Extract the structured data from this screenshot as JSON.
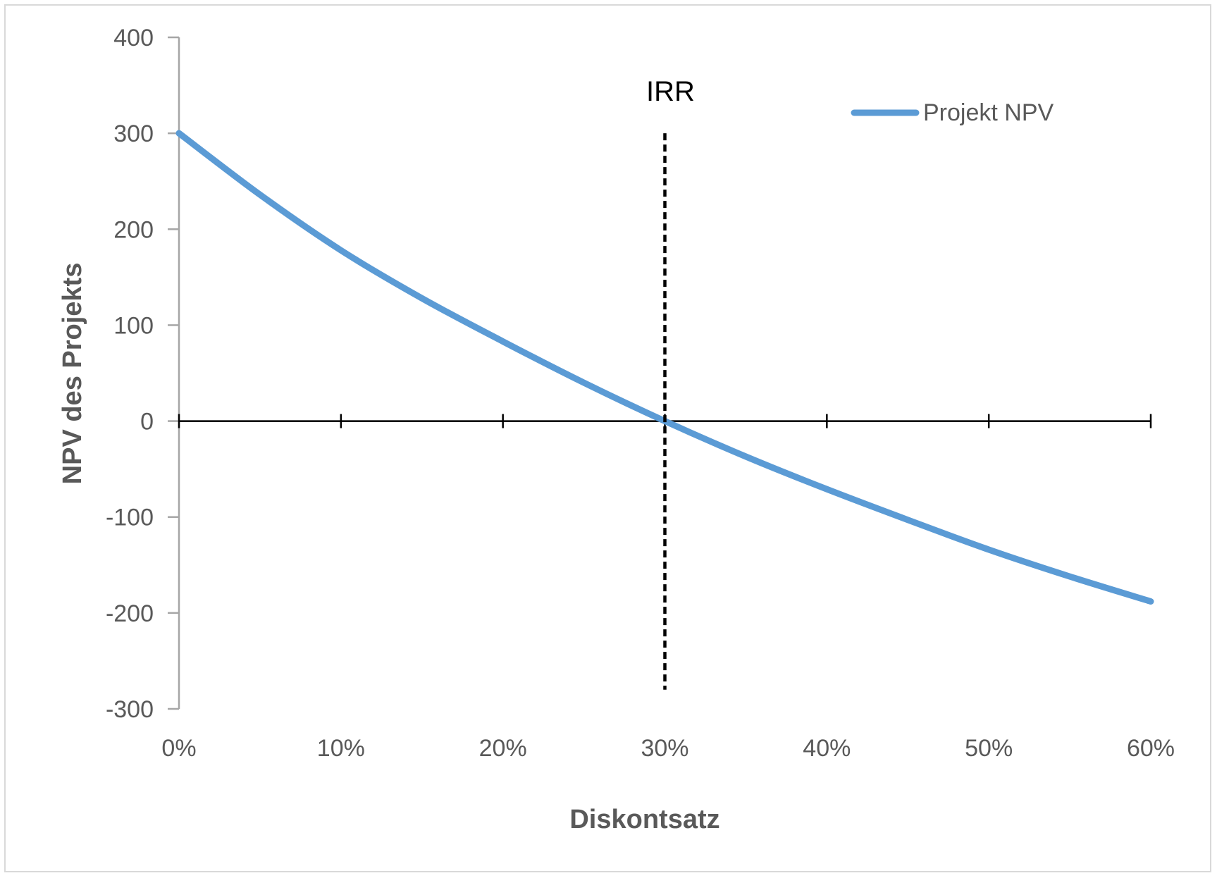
{
  "chart_data": {
    "type": "line",
    "title": "",
    "xlabel": "Diskontsatz",
    "ylabel": "NPV des Projekts",
    "xlim": [
      0,
      0.6
    ],
    "ylim": [
      -300,
      400
    ],
    "x_ticks": [
      0,
      0.1,
      0.2,
      0.3,
      0.4,
      0.5,
      0.6
    ],
    "x_tick_labels": [
      "0%",
      "10%",
      "20%",
      "30%",
      "40%",
      "50%",
      "60%"
    ],
    "y_ticks": [
      400,
      300,
      200,
      100,
      0,
      -100,
      -200,
      -300
    ],
    "y_tick_labels": [
      "400",
      "300",
      "200",
      "100",
      "0",
      "-100",
      "-200",
      "-300"
    ],
    "legend_position": "top-right",
    "series": [
      {
        "name": "Projekt NPV",
        "color": "#5b9bd5",
        "x": [
          0,
          0.05,
          0.1,
          0.15,
          0.2,
          0.25,
          0.3,
          0.35,
          0.4,
          0.45,
          0.5,
          0.55,
          0.6
        ],
        "y": [
          300,
          236,
          178,
          128,
          83,
          40,
          0,
          -37,
          -71,
          -103,
          -134,
          -162,
          -188
        ]
      }
    ],
    "reference_line": {
      "label": "IRR",
      "x": 0.3,
      "y_range": [
        300,
        -280
      ],
      "style": "dashed",
      "color": "#000000"
    }
  }
}
